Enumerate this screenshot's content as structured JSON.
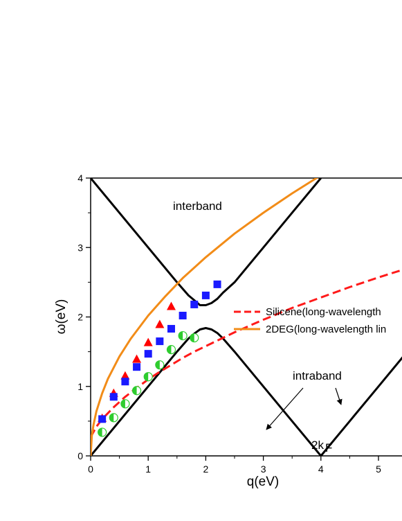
{
  "chart_data": {
    "type": "scatter",
    "xlabel": "q(eV)",
    "ylabel": "ω(eV)",
    "xlim": [
      0,
      5.5
    ],
    "ylim": [
      0,
      4
    ],
    "xticks": [
      "0",
      "1",
      "2",
      "3",
      "4",
      "5"
    ],
    "yticks": [
      "0",
      "1",
      "2",
      "3",
      "4"
    ],
    "legend_position": "right",
    "lines": [
      {
        "name": "Silicene(long-wavelength",
        "style": "dashed",
        "color": "#ff1a1a",
        "x": [
          0,
          0.1,
          0.2,
          0.4,
          0.6,
          0.8,
          1.0,
          1.2,
          1.4,
          1.6,
          1.8,
          2.0,
          2.5,
          3.0,
          3.5,
          4.0,
          4.5,
          5.0,
          5.5
        ],
        "y": [
          0.27,
          0.42,
          0.53,
          0.7,
          0.85,
          0.98,
          1.1,
          1.21,
          1.31,
          1.41,
          1.5,
          1.58,
          1.78,
          1.96,
          2.13,
          2.28,
          2.43,
          2.57,
          2.7
        ]
      },
      {
        "name": "2DEG(long-wavelength lin",
        "style": "solid",
        "color": "#f28c18",
        "x": [
          0,
          0.02,
          0.05,
          0.1,
          0.2,
          0.3,
          0.5,
          0.7,
          1.0,
          1.3,
          1.6,
          2.0,
          2.5,
          3.0,
          3.5,
          4.0,
          4.5,
          4.85
        ],
        "y": [
          0,
          0.29,
          0.45,
          0.64,
          0.9,
          1.11,
          1.43,
          1.69,
          2.02,
          2.3,
          2.56,
          2.86,
          3.2,
          3.5,
          3.78,
          4.04,
          4.29,
          4.46
        ]
      }
    ],
    "boundaries": [
      {
        "name": "interband-edge",
        "color": "#000000",
        "x": [
          0,
          1.5,
          1.7,
          1.8,
          1.9,
          2.0,
          2.1,
          2.2,
          2.3,
          2.5,
          3.0,
          3.5,
          4.0
        ],
        "y": [
          4,
          2.5,
          2.31,
          2.24,
          2.17,
          2.17,
          2.2,
          2.26,
          2.35,
          2.5,
          3.0,
          3.5,
          4.0
        ]
      },
      {
        "name": "intraband-edge",
        "color": "#000000",
        "x": [
          0,
          1.5,
          1.7,
          1.8,
          1.9,
          2.0,
          2.1,
          2.2,
          2.3,
          2.5,
          3.0,
          3.5,
          4.0,
          4.5,
          5.0,
          5.5
        ],
        "y": [
          0,
          1.5,
          1.69,
          1.76,
          1.82,
          1.84,
          1.82,
          1.77,
          1.69,
          1.5,
          1.0,
          0.5,
          0.0,
          0.5,
          1.0,
          1.5
        ]
      }
    ],
    "markers": [
      {
        "name": "red-triangles",
        "shape": "triangle",
        "color": "#ff0000",
        "x": [
          0.2,
          0.4,
          0.6,
          0.8,
          1.0,
          1.2,
          1.4
        ],
        "y": [
          0.54,
          0.9,
          1.15,
          1.39,
          1.63,
          1.89,
          2.15
        ]
      },
      {
        "name": "blue-squares",
        "shape": "square",
        "color": "#1a1aff",
        "x": [
          0.2,
          0.4,
          0.6,
          0.8,
          1.0,
          1.2,
          1.4,
          1.6,
          1.8,
          2.0,
          2.2
        ],
        "y": [
          0.53,
          0.85,
          1.07,
          1.28,
          1.47,
          1.65,
          1.83,
          2.02,
          2.18,
          2.31,
          2.47
        ]
      },
      {
        "name": "green-half-circles",
        "shape": "half-circle",
        "color": "#2ecc2e",
        "x": [
          0.2,
          0.4,
          0.6,
          0.8,
          1.0,
          1.2,
          1.4,
          1.6,
          1.8
        ],
        "y": [
          0.34,
          0.55,
          0.75,
          0.94,
          1.14,
          1.31,
          1.53,
          1.73,
          1.7
        ]
      }
    ],
    "annotations": {
      "interband": "interband",
      "intraband": "intraband",
      "two_kf_main": "2k",
      "two_kf_sub": "F"
    },
    "colors": {
      "axis": "#000000",
      "silicene": "#ff1a1a",
      "deg": "#f28c18",
      "triangles": "#ff0000",
      "squares": "#1a1aff",
      "circles": "#2ecc2e",
      "boundary": "#000000"
    }
  }
}
